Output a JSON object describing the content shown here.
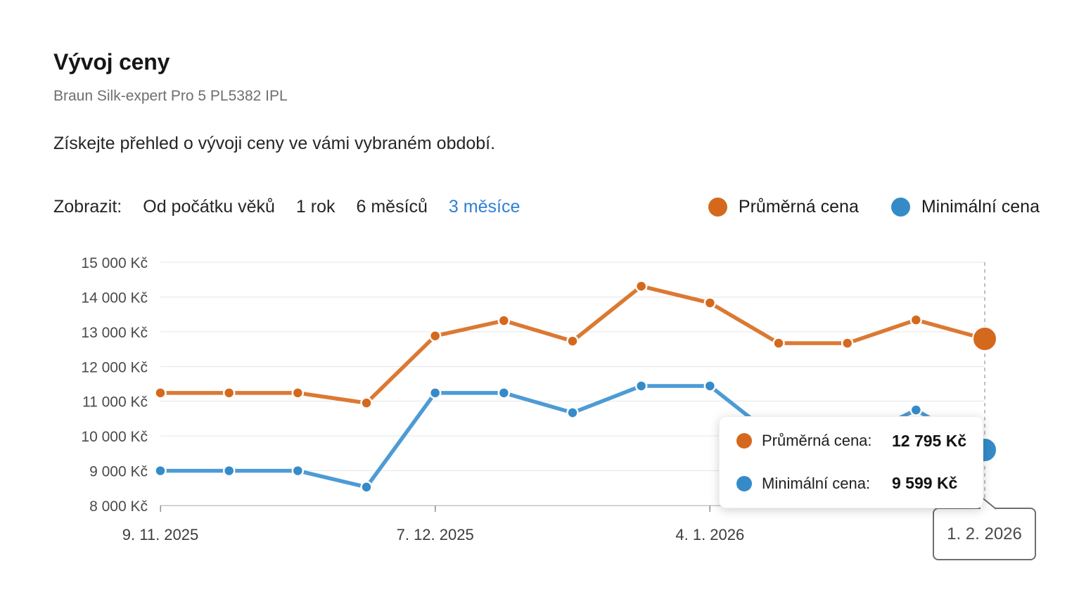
{
  "page": {
    "title": "Vývoj ceny",
    "subtitle": "Braun Silk-expert Pro 5 PL5382 IPL",
    "description": "Získejte přehled o vývoji ceny ve vámi vybraném období."
  },
  "filters": {
    "label": "Zobrazit:",
    "options": [
      {
        "label": "Od počátku věků",
        "active": false
      },
      {
        "label": "1 rok",
        "active": false
      },
      {
        "label": "6 měsíců",
        "active": false
      },
      {
        "label": "3 měsíce",
        "active": true
      }
    ],
    "active_color": "#2E7FD6"
  },
  "legend": [
    {
      "label": "Průměrná cena",
      "color": "#D4691E"
    },
    {
      "label": "Minimální cena",
      "color": "#358BC8"
    }
  ],
  "tooltip": {
    "rows": [
      {
        "label": "Průměrná cena:",
        "value": "12 795 Kč",
        "color": "#D4691E"
      },
      {
        "label": "Minimální cena:",
        "value": "9 599 Kč",
        "color": "#358BC8"
      }
    ]
  },
  "crosshair": {
    "label": "1. 2. 2026"
  },
  "chart_data": {
    "type": "line",
    "title": "Vývoj ceny",
    "unit": "Kč",
    "grid": true,
    "legend_position": "top-right",
    "ylim": [
      8000,
      15000
    ],
    "y_ticks": [
      {
        "value": 15000,
        "label": "15 000 Kč"
      },
      {
        "value": 14000,
        "label": "14 000 Kč"
      },
      {
        "value": 13000,
        "label": "13 000 Kč"
      },
      {
        "value": 12000,
        "label": "12 000 Kč"
      },
      {
        "value": 11000,
        "label": "11 000 Kč"
      },
      {
        "value": 10000,
        "label": "10 000 Kč"
      },
      {
        "value": 9000,
        "label": "9 000 Kč"
      },
      {
        "value": 8000,
        "label": "8 000 Kč"
      }
    ],
    "x": [
      "9. 11. 2025",
      "16. 11. 2025",
      "23. 11. 2025",
      "30. 11. 2025",
      "7. 12. 2025",
      "14. 12. 2025",
      "21. 12. 2025",
      "28. 12. 2025",
      "4. 1. 2026",
      "11. 1. 2026",
      "18. 1. 2026",
      "25. 1. 2026",
      "1. 2. 2026"
    ],
    "x_ticks": [
      {
        "index": 0,
        "label": "9. 11. 2025"
      },
      {
        "index": 4,
        "label": "7. 12. 2025"
      },
      {
        "index": 8,
        "label": "4. 1. 2026"
      },
      {
        "index": 12,
        "label": "1. 2. 2026",
        "boxed": true
      }
    ],
    "series": [
      {
        "name": "Průměrná cena",
        "color": "#DB7933",
        "dot_color": "#D4691E",
        "values": [
          11240,
          11240,
          11240,
          10950,
          12880,
          13320,
          12730,
          14310,
          13830,
          12670,
          12670,
          13340,
          12795
        ]
      },
      {
        "name": "Minimální cena",
        "color": "#4D9BD5",
        "dot_color": "#358BC8",
        "values": [
          9000,
          9000,
          9000,
          8530,
          11240,
          11240,
          10670,
          11440,
          11440,
          9880,
          9780,
          10750,
          9599
        ]
      }
    ],
    "highlight_index": 12,
    "crosshair_index": 12
  }
}
